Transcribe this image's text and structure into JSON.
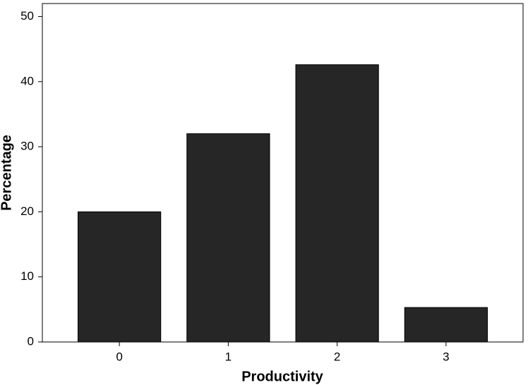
{
  "chart_data": {
    "type": "bar",
    "x_label": "Productivity",
    "y_label": "Percentage",
    "categories": [
      "0",
      "1",
      "2",
      "3"
    ],
    "values": [
      20,
      32,
      42.6,
      5.3
    ],
    "color": "#262626",
    "ylim": [
      0,
      52
    ],
    "yticks": [
      0,
      10,
      20,
      30,
      40,
      50
    ],
    "grid": false
  }
}
